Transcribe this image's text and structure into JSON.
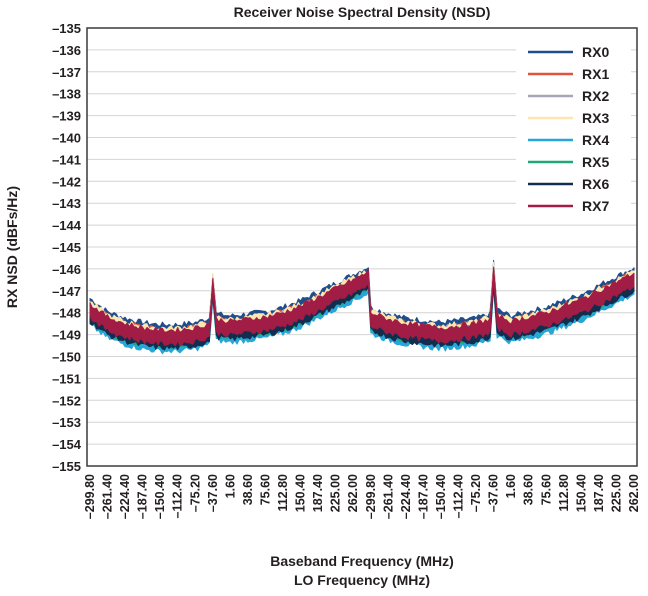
{
  "chart_data": {
    "type": "line",
    "title": "Receiver Noise Spectral Density (NSD)",
    "ylabel": "RX NSD (dBFs/Hz)",
    "xlabel": "Baseband Frequency (MHz)",
    "xlabel2": "LO Frequency (MHz)",
    "ylim": [
      -155,
      -135
    ],
    "yticks": [
      "-135",
      "-136",
      "-137",
      "-138",
      "-139",
      "-140",
      "-141",
      "-142",
      "-143",
      "-144",
      "-145",
      "-146",
      "-147",
      "-148",
      "-149",
      "-150",
      "-151",
      "-152",
      "-153",
      "-154",
      "-155"
    ],
    "xtick_labels": [
      "-299.80",
      "-261.40",
      "-224.40",
      "-187.40",
      "-150.40",
      "-112.40",
      "-75.20",
      "-37.60",
      "1.60",
      "38.60",
      "75.60",
      "112.80",
      "150.40",
      "187.40",
      "225.00",
      "262.00",
      "-299.80",
      "-261.40",
      "-224.40",
      "-187.40",
      "-150.40",
      "-112.40",
      "-75.20",
      "-37.60",
      "1.60",
      "38.60",
      "75.60",
      "112.80",
      "150.40",
      "187.40",
      "225.00",
      "262.00"
    ],
    "grid": true,
    "legend_position": "top-right",
    "x_positions": [
      0,
      1,
      2,
      3,
      4,
      5,
      6,
      6.8,
      7.0,
      7.2,
      8,
      9,
      10,
      11,
      12,
      13,
      14,
      15,
      15.99,
      16,
      17,
      18,
      19,
      20,
      21,
      22,
      22.8,
      23.0,
      23.2,
      24,
      25,
      26,
      27,
      28,
      29,
      30,
      31
    ],
    "base_values": [
      -147.9,
      -148.5,
      -148.8,
      -149.0,
      -149.1,
      -149.1,
      -149.0,
      -148.8,
      -146.7,
      -148.6,
      -148.7,
      -148.6,
      -148.5,
      -148.3,
      -148.0,
      -147.6,
      -147.2,
      -146.8,
      -146.4,
      -148.3,
      -148.6,
      -148.8,
      -148.9,
      -149.0,
      -148.9,
      -148.8,
      -148.6,
      -146.2,
      -148.4,
      -148.7,
      -148.5,
      -148.3,
      -148.0,
      -147.7,
      -147.3,
      -146.9,
      -146.5
    ],
    "series": [
      {
        "name": "RX0",
        "color": "#1f4e8c",
        "offset_db": 0.25
      },
      {
        "name": "RX1",
        "color": "#e0533d",
        "offset_db": 0.05
      },
      {
        "name": "RX2",
        "color": "#a6a6b8",
        "offset_db": 0.0
      },
      {
        "name": "RX3",
        "color": "#fde6b0",
        "offset_db": 0.1
      },
      {
        "name": "RX4",
        "color": "#27a6d8",
        "offset_db": -0.35
      },
      {
        "name": "RX5",
        "color": "#1ea77a",
        "offset_db": -0.15
      },
      {
        "name": "RX6",
        "color": "#132d4f",
        "offset_db": -0.2
      },
      {
        "name": "RX7",
        "color": "#a11d45",
        "offset_db": 0.0
      }
    ]
  }
}
